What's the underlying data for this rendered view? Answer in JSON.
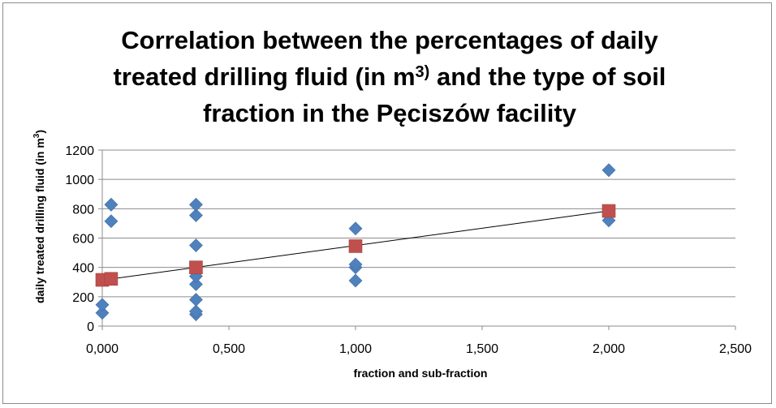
{
  "chart_data": {
    "type": "scatter",
    "title_lines": [
      "Correlation between the percentages of daily",
      "treated drilling fluid (in m",
      "fraction in the Pęciszów facility"
    ],
    "title_superscript": "3)",
    "title_line2_suffix": " and the type of soil",
    "xlabel": "fraction and sub-fraction",
    "ylabel_main": "daily treated drilling fluid  (in m",
    "ylabel_sup": "3",
    "ylabel_end": ")",
    "xlim": [
      0,
      2.5
    ],
    "ylim": [
      0,
      1200
    ],
    "x_ticks": [
      0,
      0.5,
      1,
      1.5,
      2,
      2.5
    ],
    "x_tick_labels": [
      "0,000",
      "0,500",
      "1,000",
      "1,500",
      "2,000",
      "2,500"
    ],
    "y_ticks": [
      0,
      200,
      400,
      600,
      800,
      1000,
      1200
    ],
    "y_tick_labels": [
      "0",
      "200",
      "400",
      "600",
      "800",
      "1000",
      "1200"
    ],
    "grid": "horizontal",
    "legend": "none",
    "series": [
      {
        "marker": "diamond",
        "color": "#4f81bd",
        "points": [
          {
            "x": 0.0,
            "y": 90
          },
          {
            "x": 0.0,
            "y": 145
          },
          {
            "x": 0.035,
            "y": 715
          },
          {
            "x": 0.035,
            "y": 828
          },
          {
            "x": 0.37,
            "y": 80
          },
          {
            "x": 0.37,
            "y": 100
          },
          {
            "x": 0.37,
            "y": 180
          },
          {
            "x": 0.37,
            "y": 285
          },
          {
            "x": 0.37,
            "y": 340
          },
          {
            "x": 0.37,
            "y": 550
          },
          {
            "x": 0.37,
            "y": 755
          },
          {
            "x": 0.37,
            "y": 828
          },
          {
            "x": 1.0,
            "y": 310
          },
          {
            "x": 1.0,
            "y": 400
          },
          {
            "x": 1.0,
            "y": 420
          },
          {
            "x": 1.0,
            "y": 665
          },
          {
            "x": 2.0,
            "y": 720
          },
          {
            "x": 2.0,
            "y": 1063
          }
        ]
      },
      {
        "marker": "square",
        "color": "#c0504d",
        "points": [
          {
            "x": 0.0,
            "y": 315
          },
          {
            "x": 0.035,
            "y": 322
          },
          {
            "x": 0.37,
            "y": 400
          },
          {
            "x": 1.0,
            "y": 545
          },
          {
            "x": 2.0,
            "y": 785
          }
        ]
      }
    ],
    "trendline": {
      "x": [
        0,
        2
      ],
      "y": [
        313,
        785
      ],
      "color": "#000000"
    }
  }
}
